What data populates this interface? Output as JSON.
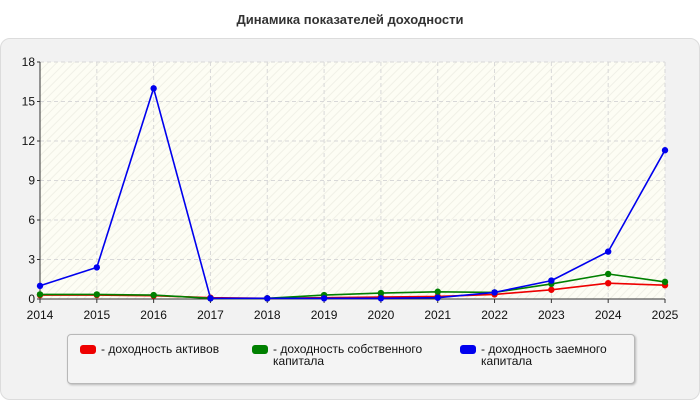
{
  "chart_data": {
    "type": "line",
    "title": "Динамика показателей доходности",
    "x": [
      "2014",
      "2015",
      "2016",
      "2017",
      "2018",
      "2019",
      "2020",
      "2021",
      "2022",
      "2023",
      "2024",
      "2025"
    ],
    "ylim": [
      0,
      18
    ],
    "yticks": [
      "0",
      "3",
      "6",
      "9",
      "12",
      "15",
      "18"
    ],
    "grid": true,
    "legend_position": "bottom",
    "series": [
      {
        "name": "- доходность активов",
        "color": "#ee0000",
        "values": [
          0.3,
          0.3,
          0.25,
          0.1,
          0.05,
          0.1,
          0.15,
          0.2,
          0.35,
          0.7,
          1.2,
          1.05
        ]
      },
      {
        "name": "- доходность собственного капитала",
        "color": "#008000",
        "values": [
          0.35,
          0.35,
          0.3,
          0.05,
          0.05,
          0.3,
          0.45,
          0.55,
          0.5,
          1.15,
          1.9,
          1.3
        ]
      },
      {
        "name": "- доходность заемного капитала",
        "color": "#0000ee",
        "values": [
          1.0,
          2.4,
          16.0,
          0.05,
          0.05,
          0.05,
          0.05,
          0.1,
          0.5,
          1.4,
          3.6,
          11.3
        ]
      }
    ]
  }
}
